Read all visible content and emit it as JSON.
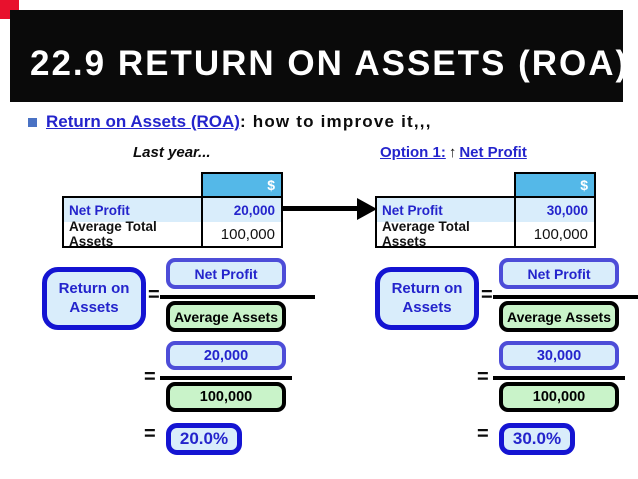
{
  "colors": {
    "accent_blue": "#2424cc",
    "deep_blue_border": "#1414d2",
    "slate_blue_border": "#4d4dd8",
    "sky_blue_header": "#54b8e8",
    "light_blue_fill": "#d9edfb",
    "light_green_fill": "#c9f3c9",
    "marker_red": "#e8112d",
    "bullet_blue": "#4a72c4"
  },
  "header": {
    "title": "22.9 RETURN ON ASSETS (ROA)"
  },
  "bullet": {
    "link": "Return on Assets (ROA)",
    "rest": ": how to improve it,,,"
  },
  "panels": [
    {
      "heading": "Last year...",
      "table": {
        "currency_header": "$",
        "rows": [
          {
            "label": "Net Profit",
            "value": "20,000"
          },
          {
            "label": "Average Total Assets",
            "value": "100,000"
          }
        ]
      },
      "formula": {
        "equals": "=",
        "result_line1": "Return on",
        "result_line2": "Assets",
        "numerator": "Net Profit",
        "denominator": "Average Assets",
        "numerator_value": "20,000",
        "denominator_value": "100,000",
        "result": "20.0%"
      }
    },
    {
      "heading_prefix": "Option 1:",
      "heading_arrow": "↑",
      "heading_suffix": "Net Profit",
      "table": {
        "currency_header": "$",
        "rows": [
          {
            "label": "Net Profit",
            "value": "30,000"
          },
          {
            "label": "Average Total Assets",
            "value": "100,000"
          }
        ]
      },
      "formula": {
        "equals": "=",
        "result_line1": "Return on",
        "result_line2": "Assets",
        "numerator": "Net Profit",
        "denominator": "Average Assets",
        "numerator_value": "30,000",
        "denominator_value": "100,000",
        "result": "30.0%"
      }
    }
  ]
}
